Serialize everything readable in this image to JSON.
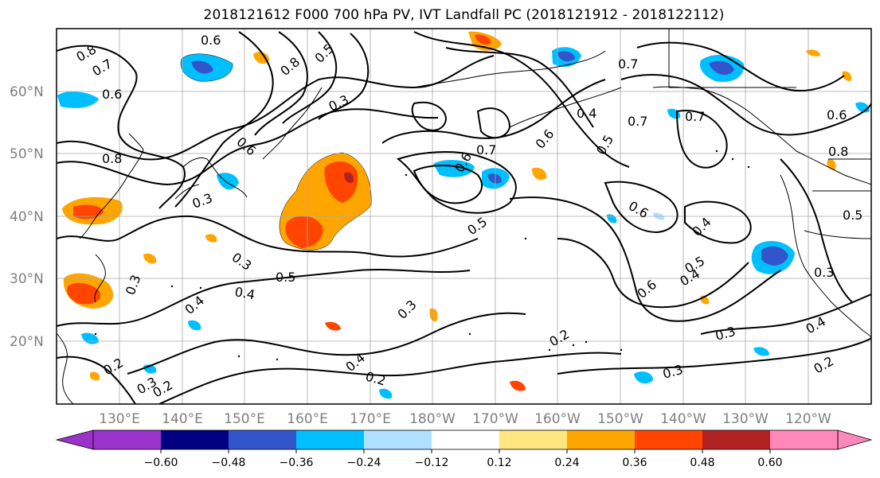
{
  "title": "2018121612 F000 700 hPa PV, IVT Landfall PC (2018121912 - 2018122112)",
  "longitude_ticks": [
    "130°E",
    "140°E",
    "150°E",
    "160°E",
    "170°E",
    "180°W",
    "170°W",
    "160°W",
    "150°W",
    "140°W",
    "130°W",
    "120°W"
  ],
  "latitude_ticks": [
    "60°N",
    "50°N",
    "40°N",
    "30°N",
    "20°N"
  ],
  "colorbar": {
    "tick_labels": [
      "−0.60",
      "−0.48",
      "−0.36",
      "−0.24",
      "−0.12",
      "0.12",
      "0.24",
      "0.36",
      "0.48",
      "0.60"
    ],
    "colors": [
      "#9933cc",
      "#000080",
      "#3355cc",
      "#00bfff",
      "#b0e0ff",
      "#ffffff",
      "#ffe680",
      "#ffa500",
      "#ff4500",
      "#b22222",
      "#ff88bb"
    ]
  },
  "contour_labels": [
    "0.6",
    "0.8",
    "0.7",
    "0.6",
    "0.8",
    "0.5",
    "0.3",
    "0.6",
    "0.8",
    "0.3",
    "0.3",
    "0.5",
    "0.4",
    "0.3",
    "0.4",
    "0.2",
    "0.3",
    "0.2",
    "0.7",
    "0.6",
    "0.5",
    "0.3",
    "0.4",
    "0.2",
    "0.2",
    "0.6",
    "0.7",
    "0.4",
    "0.7",
    "0.6",
    "0.5",
    "0.4",
    "0.5",
    "0.6",
    "0.3",
    "0.3",
    "0.4",
    "0.2",
    "0.4",
    "0.5",
    "0.6",
    "0.8",
    "0.7",
    "0.3"
  ],
  "shading": {
    "positive_colors": [
      "#ffa500",
      "#ff4500",
      "#b22222"
    ],
    "negative_colors": [
      "#00bfff",
      "#3355cc"
    ]
  },
  "icons": [
    "colorbar-left-arrow",
    "colorbar-right-arrow"
  ]
}
